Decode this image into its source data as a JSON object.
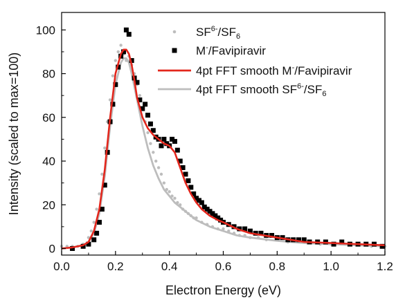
{
  "chart_data": {
    "type": "scatter",
    "xlabel": "Electron Energy (eV)",
    "ylabel": "Intensity (scaled to max=100)",
    "xlim": [
      0.0,
      1.2
    ],
    "ylim": [
      -3,
      108
    ],
    "x_ticks": [
      0.0,
      0.2,
      0.4,
      0.6,
      0.8,
      1.0,
      1.2
    ],
    "y_ticks": [
      0,
      20,
      40,
      60,
      80,
      100
    ],
    "grid": false,
    "legend_position": "top-right",
    "series": [
      {
        "name": "SF6-/SF6",
        "legend_parts": [
          [
            "SF",
            ""
          ],
          [
            "6",
            "sup"
          ],
          [
            "-",
            "sup-off"
          ],
          [
            "/SF",
            ""
          ],
          [
            "6",
            "sub"
          ]
        ],
        "style": "dots",
        "color": "#bdbdbd",
        "x": [
          0.0,
          0.02,
          0.04,
          0.06,
          0.08,
          0.1,
          0.11,
          0.12,
          0.13,
          0.14,
          0.15,
          0.16,
          0.17,
          0.18,
          0.19,
          0.2,
          0.21,
          0.22,
          0.23,
          0.24,
          0.25,
          0.26,
          0.27,
          0.28,
          0.29,
          0.3,
          0.31,
          0.32,
          0.33,
          0.34,
          0.35,
          0.36,
          0.37,
          0.38,
          0.39,
          0.4,
          0.41,
          0.42,
          0.43,
          0.44,
          0.45,
          0.46,
          0.47,
          0.48,
          0.49,
          0.5,
          0.52,
          0.54,
          0.56,
          0.58,
          0.6,
          0.62,
          0.64,
          0.66,
          0.68,
          0.7,
          0.73,
          0.76,
          0.8,
          0.84,
          0.88,
          0.92,
          0.96,
          1.0,
          1.05,
          1.1,
          1.15,
          1.2
        ],
        "values": [
          1,
          1,
          1,
          1,
          2,
          5,
          8,
          12,
          18,
          25,
          34,
          46,
          58,
          68,
          79,
          86,
          90,
          93,
          89,
          86,
          88,
          84,
          80,
          75,
          70,
          64,
          58,
          53,
          48,
          44,
          40,
          37,
          34,
          30,
          27,
          26,
          24,
          23,
          21,
          20,
          18,
          17,
          16,
          15,
          14,
          14,
          12,
          11,
          10,
          9,
          9,
          8,
          7,
          6,
          6,
          5,
          5,
          4,
          4,
          3,
          3,
          3,
          2,
          2,
          2,
          2,
          1,
          1
        ]
      },
      {
        "name": "M-/Favipiravir",
        "legend_parts": [
          [
            "M",
            ""
          ],
          [
            "-",
            "sup"
          ],
          [
            "/Favipiravir",
            ""
          ]
        ],
        "style": "squares",
        "color": "#000000",
        "x": [
          0.04,
          0.08,
          0.1,
          0.12,
          0.13,
          0.14,
          0.15,
          0.16,
          0.17,
          0.18,
          0.19,
          0.2,
          0.21,
          0.22,
          0.23,
          0.24,
          0.25,
          0.26,
          0.27,
          0.28,
          0.29,
          0.3,
          0.31,
          0.32,
          0.33,
          0.34,
          0.35,
          0.36,
          0.37,
          0.38,
          0.39,
          0.4,
          0.41,
          0.42,
          0.43,
          0.44,
          0.45,
          0.46,
          0.47,
          0.48,
          0.49,
          0.5,
          0.51,
          0.52,
          0.53,
          0.54,
          0.55,
          0.56,
          0.57,
          0.58,
          0.59,
          0.6,
          0.62,
          0.64,
          0.66,
          0.68,
          0.7,
          0.72,
          0.74,
          0.76,
          0.78,
          0.8,
          0.82,
          0.84,
          0.86,
          0.88,
          0.9,
          0.92,
          0.95,
          0.98,
          1.01,
          1.04,
          1.07,
          1.1,
          1.13,
          1.16,
          1.19
        ],
        "values": [
          0,
          1,
          2,
          4,
          7,
          12,
          18,
          29,
          44,
          58,
          66,
          75,
          83,
          88,
          90,
          100,
          98,
          86,
          78,
          76,
          68,
          64,
          66,
          61,
          57,
          54,
          51,
          50,
          47,
          50,
          48,
          47,
          50,
          49,
          45,
          40,
          37,
          34,
          31,
          28,
          25,
          23,
          22,
          21,
          19,
          18,
          17,
          16,
          15,
          14,
          13,
          12,
          11,
          10,
          9,
          9,
          8,
          7,
          7,
          6,
          6,
          5,
          5,
          4,
          4,
          4,
          4,
          3,
          3,
          3,
          2,
          3,
          2,
          2,
          2,
          2,
          1
        ]
      },
      {
        "name": "4pt FFT smooth M-/Favipiravir",
        "legend_parts": [
          [
            "4pt FFT smooth M",
            ""
          ],
          [
            "-",
            "sup"
          ],
          [
            "/Favipiravir",
            ""
          ]
        ],
        "style": "line",
        "color": "#e3261c",
        "x": [
          0.0,
          0.04,
          0.08,
          0.1,
          0.12,
          0.14,
          0.16,
          0.18,
          0.2,
          0.22,
          0.23,
          0.24,
          0.25,
          0.26,
          0.27,
          0.28,
          0.3,
          0.32,
          0.34,
          0.36,
          0.38,
          0.4,
          0.42,
          0.44,
          0.46,
          0.48,
          0.5,
          0.52,
          0.55,
          0.58,
          0.6,
          0.65,
          0.7,
          0.75,
          0.8,
          0.9,
          1.0,
          1.1,
          1.2
        ],
        "values": [
          0,
          0.5,
          1.5,
          3,
          8,
          18,
          36,
          60,
          80,
          89,
          91,
          91,
          89,
          84,
          77,
          69,
          60,
          55,
          52,
          50,
          48,
          47,
          44,
          37,
          30,
          25,
          21,
          18,
          15,
          13,
          12,
          9,
          7,
          6,
          5,
          3,
          2.5,
          2,
          1.5
        ]
      },
      {
        "name": "4pt FFT smooth SF6-/SF6",
        "legend_parts": [
          [
            "4pt FFT smooth SF",
            ""
          ],
          [
            "6",
            "sup"
          ],
          [
            "-",
            "sup-off"
          ],
          [
            "/SF",
            ""
          ],
          [
            "6",
            "sub"
          ]
        ],
        "style": "line",
        "color": "#bdbdbd",
        "x": [
          0.0,
          0.04,
          0.08,
          0.1,
          0.12,
          0.14,
          0.16,
          0.18,
          0.2,
          0.22,
          0.23,
          0.24,
          0.25,
          0.26,
          0.28,
          0.3,
          0.32,
          0.34,
          0.36,
          0.38,
          0.4,
          0.42,
          0.44,
          0.46,
          0.48,
          0.5,
          0.55,
          0.6,
          0.65,
          0.7,
          0.8,
          0.9,
          1.0,
          1.1,
          1.2
        ],
        "values": [
          0,
          0.5,
          1.5,
          3,
          7,
          16,
          33,
          56,
          75,
          85,
          87,
          87,
          85,
          80,
          68,
          56,
          46,
          38,
          32,
          27,
          24,
          21,
          19,
          17,
          15,
          13,
          10,
          8,
          6,
          5,
          3.5,
          2.5,
          2,
          1.5,
          1
        ]
      }
    ]
  }
}
